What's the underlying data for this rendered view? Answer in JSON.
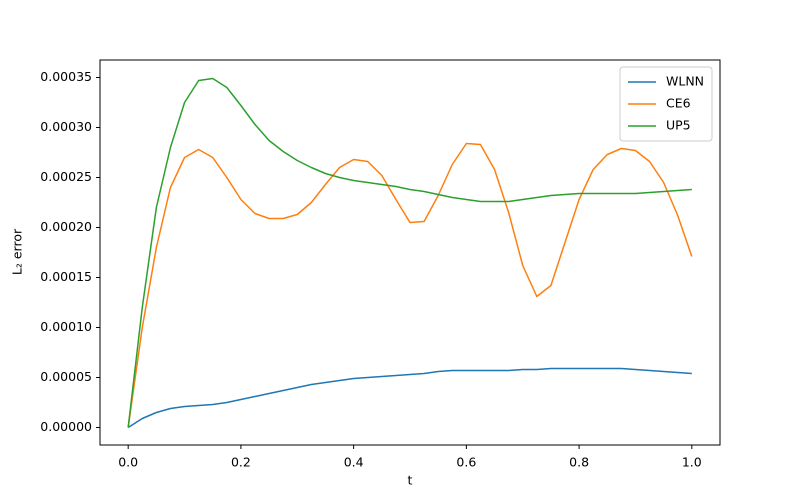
{
  "chart_data": {
    "type": "line",
    "xlabel": "t",
    "ylabel": "L₂ error",
    "x": [
      0,
      0.025,
      0.05,
      0.075,
      0.1,
      0.125,
      0.15,
      0.175,
      0.2,
      0.225,
      0.25,
      0.275,
      0.3,
      0.325,
      0.35,
      0.375,
      0.4,
      0.425,
      0.45,
      0.475,
      0.5,
      0.525,
      0.55,
      0.575,
      0.6,
      0.625,
      0.65,
      0.675,
      0.7,
      0.725,
      0.75,
      0.775,
      0.8,
      0.825,
      0.85,
      0.875,
      0.9,
      0.925,
      0.95,
      0.975,
      1
    ],
    "series": [
      {
        "name": "WLNN",
        "color": "#1f77b4",
        "values": [
          0,
          9e-06,
          1.5e-05,
          1.9e-05,
          2.1e-05,
          2.2e-05,
          2.3e-05,
          2.5e-05,
          2.8e-05,
          3.1e-05,
          3.4e-05,
          3.7e-05,
          4e-05,
          4.3e-05,
          4.5e-05,
          4.7e-05,
          4.9e-05,
          5e-05,
          5.1e-05,
          5.2e-05,
          5.3e-05,
          5.4e-05,
          5.6e-05,
          5.7e-05,
          5.7e-05,
          5.7e-05,
          5.7e-05,
          5.7e-05,
          5.8e-05,
          5.8e-05,
          5.9e-05,
          5.9e-05,
          5.9e-05,
          5.9e-05,
          5.9e-05,
          5.9e-05,
          5.8e-05,
          5.7e-05,
          5.6e-05,
          5.5e-05,
          5.4e-05
        ]
      },
      {
        "name": "CE6",
        "color": "#ff7f0e",
        "values": [
          0,
          0.0001,
          0.00018,
          0.00024,
          0.00027,
          0.000278,
          0.00027,
          0.00025,
          0.000228,
          0.000214,
          0.000209,
          0.000209,
          0.000213,
          0.000225,
          0.000243,
          0.00026,
          0.000268,
          0.000266,
          0.000252,
          0.000228,
          0.000205,
          0.000206,
          0.000232,
          0.000263,
          0.000284,
          0.000283,
          0.000258,
          0.000215,
          0.000162,
          0.000131,
          0.000142,
          0.000185,
          0.000228,
          0.000258,
          0.000273,
          0.000279,
          0.000277,
          0.000266,
          0.000245,
          0.000212,
          0.000171
        ]
      },
      {
        "name": "UP5",
        "color": "#2ca02c",
        "values": [
          0,
          0.00012,
          0.00022,
          0.00028,
          0.000325,
          0.000347,
          0.000349,
          0.00034,
          0.000322,
          0.000303,
          0.000287,
          0.000276,
          0.000267,
          0.00026,
          0.000254,
          0.00025,
          0.000247,
          0.000245,
          0.000243,
          0.000241,
          0.000238,
          0.000236,
          0.000233,
          0.00023,
          0.000228,
          0.000226,
          0.000226,
          0.000226,
          0.000228,
          0.00023,
          0.000232,
          0.000233,
          0.000234,
          0.000234,
          0.000234,
          0.000234,
          0.000234,
          0.000235,
          0.000236,
          0.000237,
          0.000238
        ]
      }
    ],
    "xlim": [
      -0.05,
      1.05
    ],
    "xticks": [
      {
        "value": 0,
        "label": "0.0"
      },
      0.2,
      0.4,
      0.6,
      0.8,
      {
        "value": 1,
        "label": "1.0"
      }
    ],
    "ylim": [
      -1.75e-05,
      0.0003675
    ],
    "yticks": [
      {
        "value": 0,
        "label": "0.00000"
      },
      {
        "value": 5e-05,
        "label": "0.00005"
      },
      {
        "value": 0.0001,
        "label": "0.00010"
      },
      {
        "value": 0.00015,
        "label": "0.00015"
      },
      {
        "value": 0.0002,
        "label": "0.00020"
      },
      {
        "value": 0.00025,
        "label": "0.00025"
      },
      {
        "value": 0.0003,
        "label": "0.00030"
      },
      {
        "value": 0.00035,
        "label": "0.00035"
      }
    ],
    "grid": false,
    "legend": "upper right"
  }
}
